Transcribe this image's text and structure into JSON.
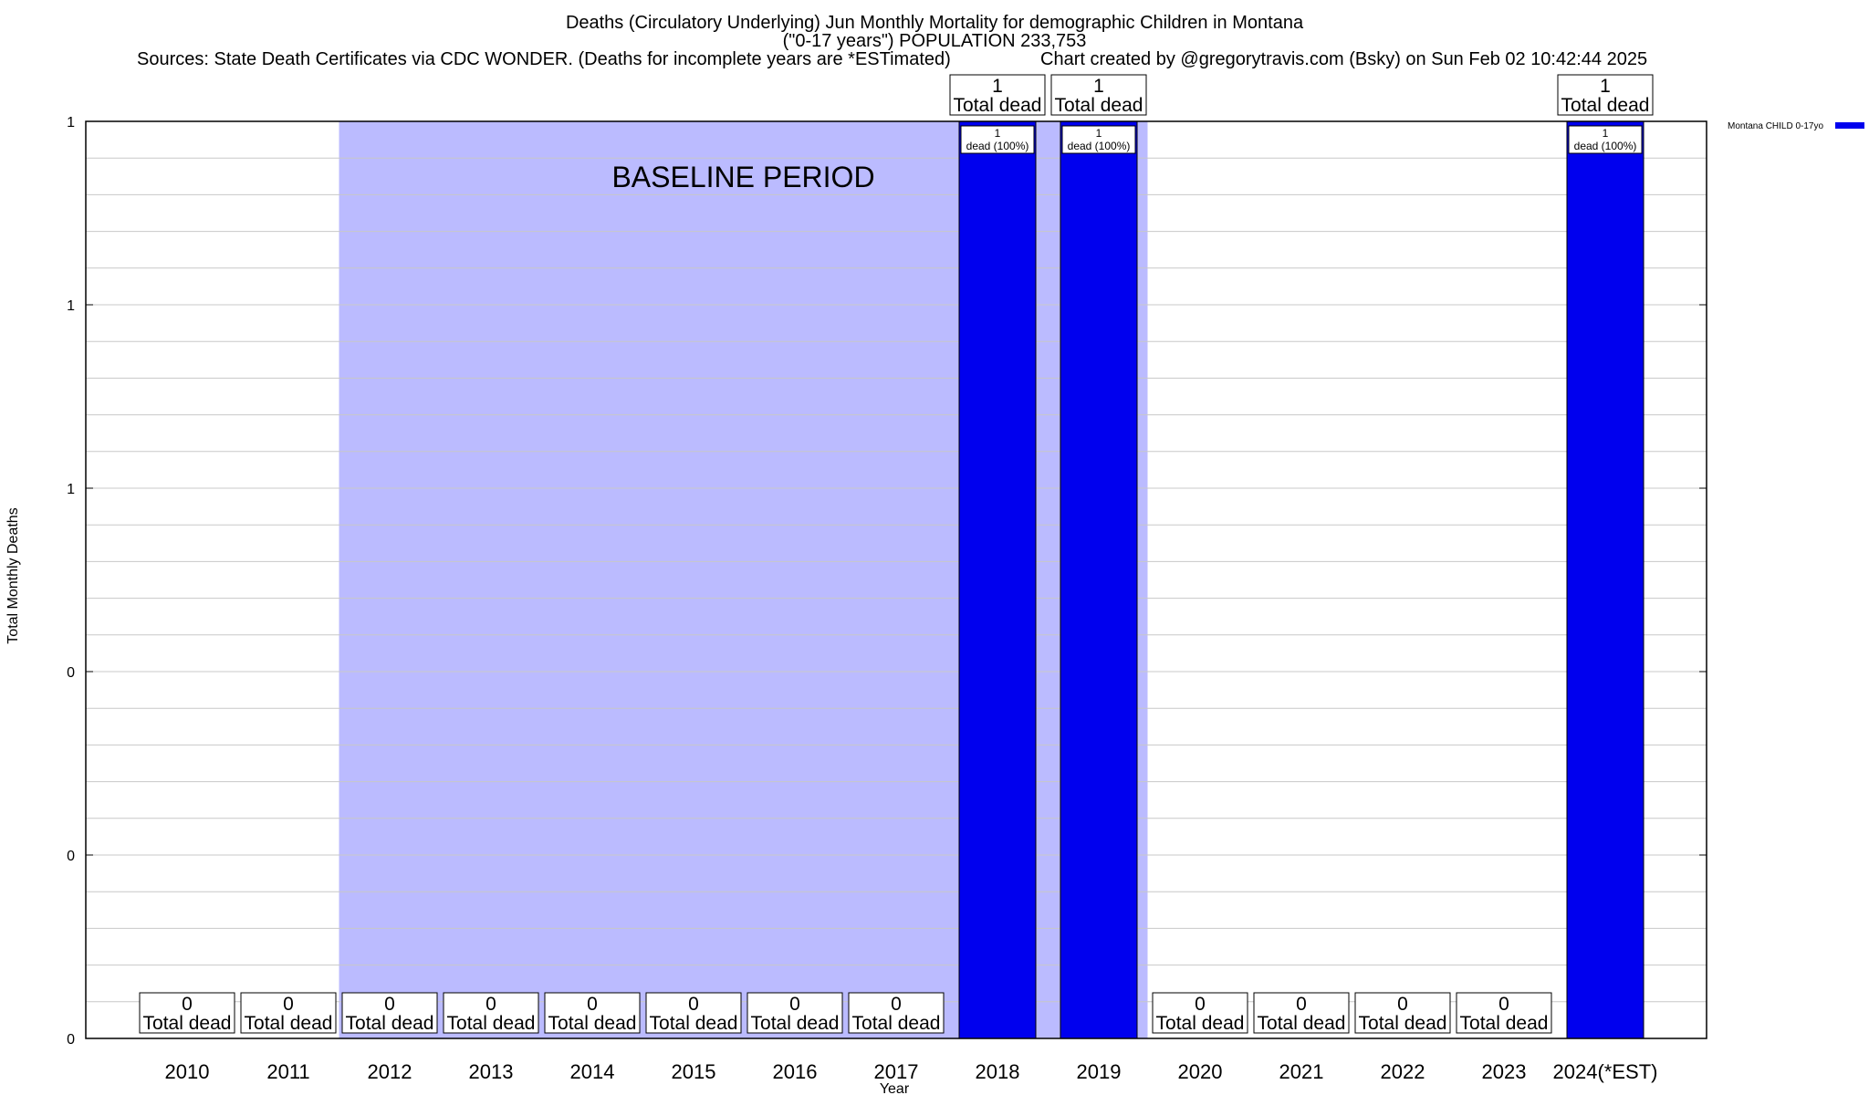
{
  "header": {
    "title_line1": "Deaths (Circulatory Underlying) Jun Monthly Mortality for demographic Children in Montana",
    "title_line2": "(\"0-17 years\") POPULATION 233,753",
    "sources": "Sources: State Death Certificates via CDC WONDER. (Deaths for incomplete years are *ESTimated)",
    "credit": "Chart created by @gregorytravis.com (Bsky) on Sun Feb 02 10:42:44 2025"
  },
  "chart_data": {
    "type": "bar",
    "categories": [
      "2010",
      "2011",
      "2012",
      "2013",
      "2014",
      "2015",
      "2016",
      "2017",
      "2018",
      "2019",
      "2020",
      "2021",
      "2022",
      "2023",
      "2024(*EST)"
    ],
    "series": [
      {
        "name": "Montana CHILD 0-17yo",
        "values": [
          0,
          0,
          0,
          0,
          0,
          0,
          0,
          0,
          1,
          1,
          0,
          0,
          0,
          0,
          1
        ],
        "color": "#0000ee"
      }
    ],
    "total_labels": [
      "0\nTotal dead",
      "0\nTotal dead",
      "0\nTotal dead",
      "0\nTotal dead",
      "0\nTotal dead",
      "0\nTotal dead",
      "0\nTotal dead",
      "0\nTotal dead",
      "1\nTotal dead",
      "1\nTotal dead",
      "0\nTotal dead",
      "0\nTotal dead",
      "0\nTotal dead",
      "0\nTotal dead",
      "1\nTotal dead"
    ],
    "bar_labels": [
      "",
      "",
      "",
      "",
      "",
      "",
      "",
      "",
      "1\ndead (100%)",
      "1\ndead (100%)",
      "",
      "",
      "",
      "",
      "1\ndead (100%)"
    ],
    "ylim": [
      0,
      1
    ],
    "ytick_values": [
      0,
      0.2,
      0.4,
      0.6,
      0.8,
      1
    ],
    "ytick_labels": [
      "0",
      "0",
      "0",
      "1",
      "1",
      "1"
    ],
    "xlabel": "Year",
    "ylabel": "Total Monthly Deaths",
    "grid": true,
    "legend_position": "top-right",
    "annotation": {
      "text": "BASELINE PERIOD",
      "from_category": "2012",
      "to_category": "2019",
      "color": "#bbbbff"
    }
  }
}
